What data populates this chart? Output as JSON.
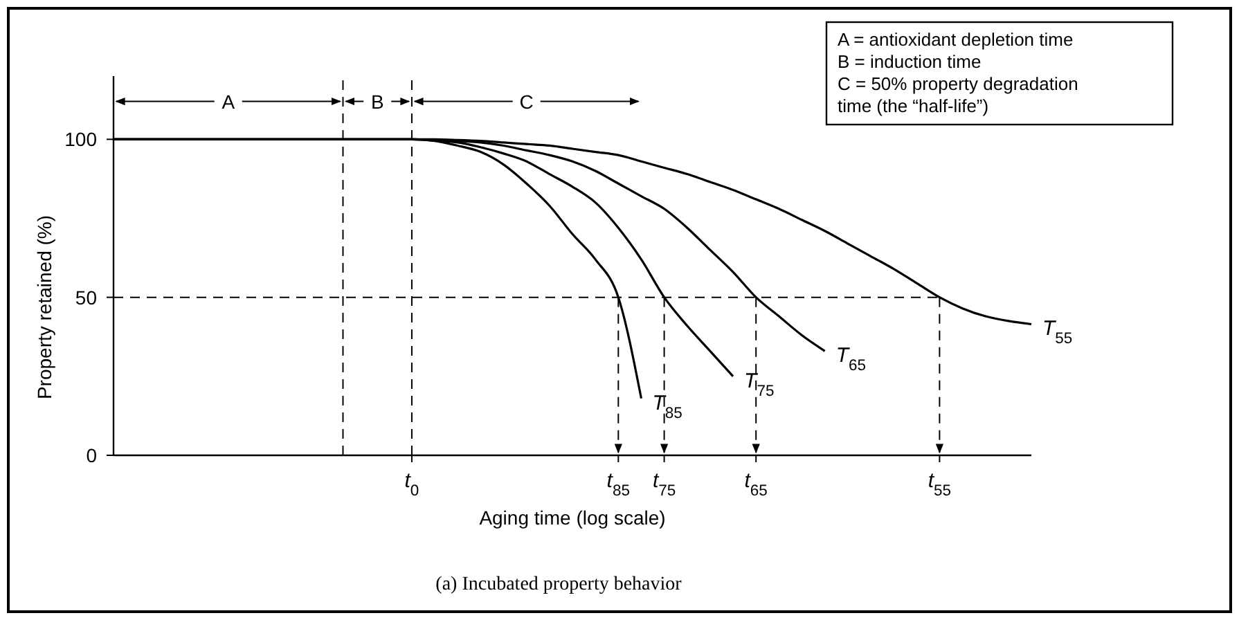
{
  "chart_data": {
    "type": "line",
    "xlabel": "Aging time (log scale)",
    "ylabel": "Property retained (%)",
    "categories": [
      null,
      null,
      null,
      null,
      null,
      null,
      null,
      null,
      null,
      null,
      null,
      null,
      null,
      "t$_{0}$",
      null,
      null,
      null,
      null,
      null,
      null,
      null,
      null,
      "t$_{85}$",
      null,
      "t$_{75}$",
      null,
      null,
      null,
      "t$_{65}$",
      null,
      null,
      null,
      null,
      null,
      null,
      null,
      "t$_{55}$",
      null,
      null,
      null,
      null
    ],
    "ylim": [
      0,
      120
    ],
    "yticks": [
      0,
      50,
      100
    ],
    "line_style": "solid",
    "marker": "none",
    "series": [
      {
        "name": "T$_{85}$",
        "color": "#000000",
        "values": [
          100,
          100,
          100,
          100,
          100,
          100,
          100,
          100,
          100,
          100,
          100,
          100,
          100,
          100,
          99.5,
          98,
          96,
          92,
          86,
          79,
          70,
          62,
          50,
          18,
          null,
          null,
          null,
          null,
          null,
          null,
          null,
          null,
          null,
          null,
          null,
          null,
          null,
          null,
          null,
          null,
          null
        ]
      },
      {
        "name": "T$_{75}$",
        "color": "#000000",
        "values": [
          100,
          100,
          100,
          100,
          100,
          100,
          100,
          100,
          100,
          100,
          100,
          100,
          100,
          100,
          99.6,
          99,
          97.5,
          95.5,
          93,
          89,
          85,
          80,
          72,
          62,
          50,
          41,
          33,
          25,
          null,
          null,
          null,
          null,
          null,
          null,
          null,
          null,
          null,
          null,
          null,
          null,
          null
        ]
      },
      {
        "name": "T$_{65}$",
        "color": "#000000",
        "values": [
          100,
          100,
          100,
          100,
          100,
          100,
          100,
          100,
          100,
          100,
          100,
          100,
          100,
          100,
          99.8,
          99.5,
          99,
          98,
          96.5,
          95,
          93,
          90,
          86,
          82,
          78,
          72,
          65,
          58,
          50,
          44,
          38,
          33,
          null,
          null,
          null,
          null,
          null,
          null,
          null,
          null,
          null
        ]
      },
      {
        "name": "T$_{55}$",
        "color": "#000000",
        "values": [
          100,
          100,
          100,
          100,
          100,
          100,
          100,
          100,
          100,
          100,
          100,
          100,
          100,
          100,
          100,
          99.8,
          99.5,
          99,
          98.5,
          98,
          97,
          96,
          95,
          93,
          91,
          89,
          86.5,
          84,
          81,
          78,
          74.5,
          71,
          67,
          63,
          59,
          54.5,
          50,
          46.5,
          44,
          42.5,
          41.5
        ]
      }
    ],
    "ref_lines": [
      {
        "axis": "y",
        "value": 50,
        "line_style": "dashed"
      }
    ],
    "annotations": [
      {
        "text": "A",
        "y": 112
      },
      {
        "text": "B",
        "y": 112
      },
      {
        "text": "C",
        "y": 112
      },
      "A = antioxidant depletion time",
      "B = induction time",
      "C = 50% property degradation time (the “half-life”)",
      "(a) Incubated property behavior"
    ]
  }
}
